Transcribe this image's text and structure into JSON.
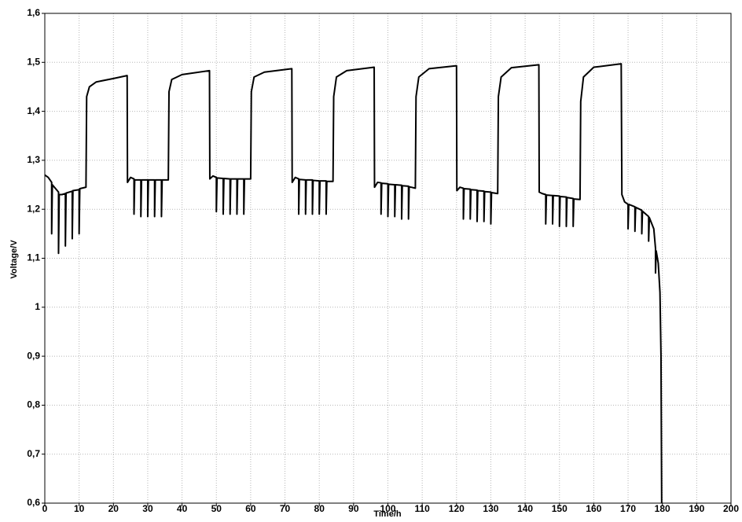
{
  "chart_data": {
    "type": "line",
    "xlabel": "Time/h",
    "ylabel": "Voltage/V",
    "x": [
      0,
      1,
      2,
      2,
      2.2,
      4,
      4,
      4.2,
      5,
      6,
      6,
      6.2,
      8,
      8,
      8.2,
      10,
      10,
      10.2,
      12,
      12.2,
      13,
      15,
      20,
      24,
      24.1,
      25,
      26,
      26,
      26.2,
      28,
      28,
      28.2,
      30,
      30,
      30.2,
      32,
      32,
      32.2,
      34,
      34,
      34.2,
      36,
      36.2,
      37,
      40,
      48,
      48.1,
      49,
      50,
      50,
      50.2,
      52,
      52,
      52.2,
      54,
      54,
      54.2,
      56,
      56,
      56.2,
      58,
      58,
      58.2,
      60,
      60.2,
      61,
      64,
      72,
      72.1,
      73,
      74,
      74,
      74.2,
      76,
      76,
      76.2,
      78,
      78,
      78.2,
      80,
      80,
      80.2,
      82,
      82,
      82.2,
      84,
      84.2,
      85,
      88,
      96,
      96.1,
      97,
      98,
      98,
      98.2,
      100,
      100,
      100.2,
      102,
      102,
      102.2,
      104,
      104,
      104.2,
      106,
      106,
      106.2,
      108,
      108.2,
      109,
      112,
      120,
      120.1,
      121,
      122,
      122,
      122.2,
      124,
      124,
      124.2,
      126,
      126,
      126.2,
      128,
      128,
      128.2,
      130,
      130,
      130.2,
      132,
      132.2,
      133,
      136,
      144,
      144.1,
      145,
      146,
      146,
      146.2,
      148,
      148,
      148.2,
      150,
      150,
      150.2,
      152,
      152,
      152.2,
      154,
      154,
      154.2,
      156,
      156.2,
      157,
      160,
      168,
      168.2,
      169,
      170,
      170,
      170.2,
      172,
      172,
      172.2,
      174,
      174,
      174.2,
      176,
      176,
      176.2,
      177.5,
      178,
      178,
      178.2,
      178.8,
      179.3,
      179.6,
      179.8
    ],
    "series": [
      {
        "color": "#000000",
        "values": [
          1.27,
          1.265,
          1.255,
          1.15,
          1.25,
          1.235,
          1.11,
          1.23,
          1.23,
          1.232,
          1.125,
          1.233,
          1.237,
          1.14,
          1.238,
          1.24,
          1.15,
          1.242,
          1.245,
          1.43,
          1.45,
          1.46,
          1.467,
          1.473,
          1.255,
          1.265,
          1.262,
          1.19,
          1.26,
          1.26,
          1.185,
          1.26,
          1.26,
          1.185,
          1.26,
          1.26,
          1.185,
          1.26,
          1.26,
          1.185,
          1.26,
          1.26,
          1.44,
          1.465,
          1.475,
          1.483,
          1.262,
          1.268,
          1.265,
          1.195,
          1.264,
          1.263,
          1.19,
          1.263,
          1.262,
          1.19,
          1.262,
          1.262,
          1.19,
          1.262,
          1.262,
          1.19,
          1.262,
          1.262,
          1.44,
          1.47,
          1.48,
          1.487,
          1.255,
          1.265,
          1.262,
          1.19,
          1.261,
          1.26,
          1.19,
          1.26,
          1.26,
          1.19,
          1.259,
          1.258,
          1.19,
          1.258,
          1.258,
          1.19,
          1.257,
          1.257,
          1.43,
          1.47,
          1.483,
          1.49,
          1.245,
          1.255,
          1.254,
          1.19,
          1.253,
          1.252,
          1.185,
          1.251,
          1.25,
          1.185,
          1.25,
          1.249,
          1.18,
          1.248,
          1.247,
          1.18,
          1.246,
          1.243,
          1.43,
          1.47,
          1.487,
          1.493,
          1.238,
          1.245,
          1.243,
          1.18,
          1.242,
          1.241,
          1.18,
          1.24,
          1.239,
          1.175,
          1.238,
          1.237,
          1.175,
          1.236,
          1.235,
          1.17,
          1.234,
          1.232,
          1.43,
          1.47,
          1.489,
          1.495,
          1.235,
          1.232,
          1.23,
          1.17,
          1.229,
          1.228,
          1.17,
          1.228,
          1.227,
          1.165,
          1.226,
          1.225,
          1.165,
          1.224,
          1.222,
          1.165,
          1.221,
          1.22,
          1.42,
          1.47,
          1.49,
          1.497,
          1.23,
          1.215,
          1.21,
          1.16,
          1.21,
          1.205,
          1.155,
          1.204,
          1.198,
          1.15,
          1.196,
          1.185,
          1.135,
          1.183,
          1.16,
          1.12,
          1.07,
          1.115,
          1.09,
          1.03,
          0.9,
          0.6
        ]
      }
    ],
    "xlim": [
      0,
      200
    ],
    "xticks": [
      0,
      10,
      20,
      30,
      40,
      50,
      60,
      70,
      80,
      90,
      100,
      110,
      120,
      130,
      140,
      150,
      160,
      170,
      180,
      190,
      200
    ],
    "ylim": [
      0.6,
      1.6
    ],
    "yticks": [
      {
        "value": 0.6,
        "label": "0,6"
      },
      {
        "value": 0.7,
        "label": "0,7"
      },
      {
        "value": 0.8,
        "label": "0,8"
      },
      {
        "value": 0.9,
        "label": "0,9"
      },
      1,
      {
        "value": 1.1,
        "label": "1,1"
      },
      {
        "value": 1.2,
        "label": "1,2"
      },
      {
        "value": 1.3,
        "label": "1,3"
      },
      {
        "value": 1.4,
        "label": "1,4"
      },
      {
        "value": 1.5,
        "label": "1,5"
      },
      {
        "value": 1.6,
        "label": "1,6"
      }
    ],
    "grid": true
  }
}
